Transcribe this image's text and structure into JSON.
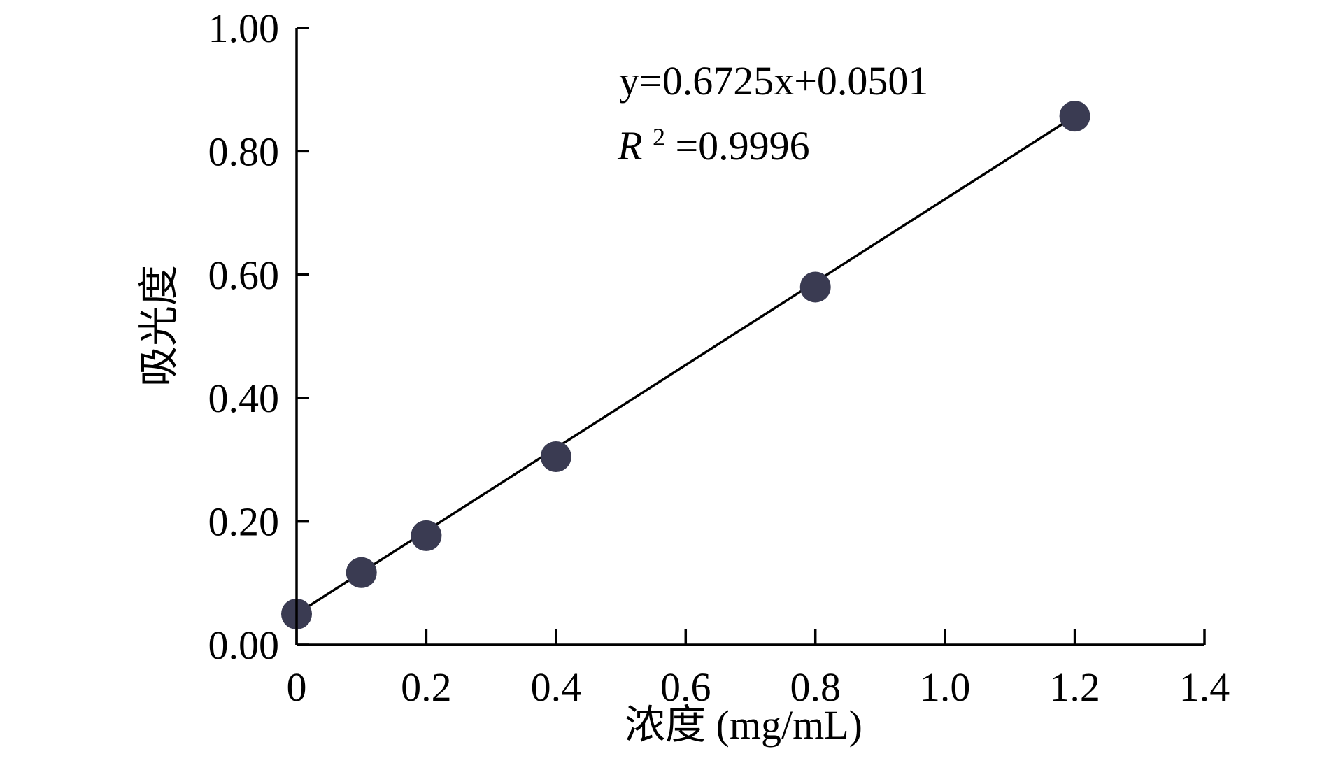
{
  "chart_data": {
    "type": "scatter",
    "title": "",
    "xlabel": "浓度 (mg/mL)",
    "ylabel": "吸光度",
    "xlim": [
      0,
      1.4
    ],
    "ylim": [
      0,
      1.0
    ],
    "x_ticks": [
      "0",
      "0.2",
      "0.4",
      "0.6",
      "0.8",
      "1.0",
      "1.2",
      "1.4"
    ],
    "x_tick_values": [
      0,
      0.2,
      0.4,
      0.6,
      0.8,
      1.0,
      1.2,
      1.4
    ],
    "y_ticks": [
      "0.00",
      "0.20",
      "0.40",
      "0.60",
      "0.80",
      "1.00"
    ],
    "y_tick_values": [
      0,
      0.2,
      0.4,
      0.6,
      0.8,
      1.0
    ],
    "series": [
      {
        "x": [
          0,
          0.1,
          0.2,
          0.4,
          0.8,
          1.2
        ],
        "y": [
          0.05,
          0.117,
          0.177,
          0.305,
          0.58,
          0.857
        ],
        "color": "#3a3b52"
      }
    ],
    "trendline": {
      "slope": 0.6725,
      "intercept": 0.0501,
      "x_range": [
        0,
        1.2
      ],
      "color": "#000000"
    },
    "annotations": {
      "equation": "y=0.6725x+0.0501",
      "r2_symbol": "R",
      "r2_exponent": "2",
      "r2_value": "=0.9996"
    },
    "grid": false,
    "legend": "none"
  }
}
